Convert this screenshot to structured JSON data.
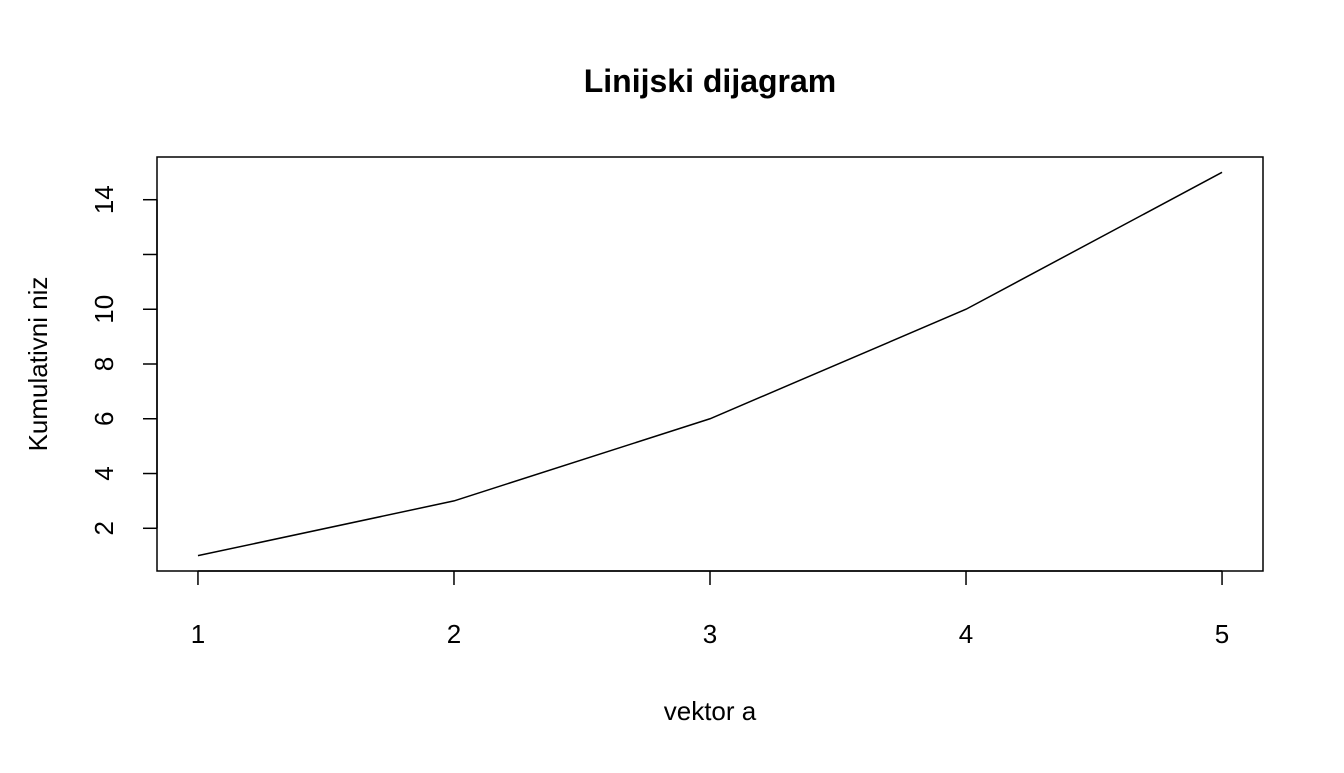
{
  "chart_data": {
    "type": "line",
    "title": "Linijski dijagram",
    "xlabel": "vektor a",
    "ylabel": "Kumulativni niz",
    "x": [
      1,
      2,
      3,
      4,
      5
    ],
    "values": [
      1,
      3,
      6,
      10,
      15
    ],
    "xlim": [
      0.84,
      5.16
    ],
    "ylim": [
      0.44,
      15.56
    ],
    "xticks": [
      1,
      2,
      3,
      4,
      5
    ],
    "xtick_labels": [
      "1",
      "2",
      "3",
      "4",
      "5"
    ],
    "yticks": [
      2,
      4,
      6,
      8,
      10,
      12,
      14
    ],
    "ytick_labels": [
      "2",
      "4",
      "6",
      "8",
      "10",
      "",
      "14"
    ],
    "grid": false,
    "line_color": "#000000"
  }
}
